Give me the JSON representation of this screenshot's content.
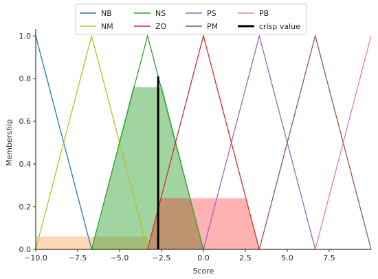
{
  "chart_data": {
    "type": "line",
    "title": "",
    "xlabel": "Score",
    "ylabel": "Membership",
    "xlim": [
      -10,
      10
    ],
    "ylim": [
      0,
      1.0
    ],
    "xticks": [
      -10.0,
      -7.5,
      -5.0,
      -2.5,
      0.0,
      2.5,
      5.0,
      7.5
    ],
    "xtick_labels": [
      "−10.0",
      "−7.5",
      "−5.0",
      "−2.5",
      "0.0",
      "2.5",
      "5.0",
      "7.5"
    ],
    "yticks": [
      0.0,
      0.2,
      0.4,
      0.6,
      0.8,
      1.0
    ],
    "ytick_labels": [
      "0.0",
      "0.2",
      "0.4",
      "0.6",
      "0.8",
      "1.0"
    ],
    "legend": {
      "placement": "top-center",
      "columns": 4
    },
    "series": [
      {
        "name": "NB",
        "color": "#1f77b4",
        "x": [
          -10,
          -10,
          -6.67
        ],
        "y": [
          1,
          1,
          0
        ]
      },
      {
        "name": "NM",
        "color": "#bcbd22",
        "x": [
          -10,
          -6.67,
          -3.33
        ],
        "y": [
          0,
          1,
          0
        ]
      },
      {
        "name": "NS",
        "color": "#2ca02c",
        "x": [
          -6.67,
          -3.33,
          0
        ],
        "y": [
          0,
          1,
          0
        ]
      },
      {
        "name": "ZO",
        "color": "#d62728",
        "x": [
          -3.33,
          0,
          3.33
        ],
        "y": [
          0,
          1,
          0
        ]
      },
      {
        "name": "PS",
        "color": "#9467bd",
        "x": [
          0,
          3.33,
          6.67
        ],
        "y": [
          0,
          1,
          0
        ]
      },
      {
        "name": "PM",
        "color": "#8c564b",
        "x": [
          3.33,
          6.67,
          10
        ],
        "y": [
          0,
          1,
          0
        ]
      },
      {
        "name": "PB",
        "color": "#e377c2",
        "x": [
          6.67,
          10,
          10
        ],
        "y": [
          0,
          1,
          1
        ]
      }
    ],
    "filled_regions": [
      {
        "series": "NM",
        "color": "#ff7f0e",
        "opacity": 0.3,
        "x": [
          -10,
          -10,
          -6.67,
          -3.33,
          -3.33
        ],
        "y": [
          0,
          0.06,
          0.06,
          0.06,
          0
        ]
      },
      {
        "series": "NS",
        "color": "#2ca02c",
        "opacity": 0.45,
        "x": [
          -6.67,
          -4.2,
          -3.33,
          -2.45,
          0
        ],
        "y": [
          0,
          0.76,
          0.76,
          0.76,
          0
        ]
      },
      {
        "series": "ZO",
        "color": "#ff0000",
        "opacity": 0.3,
        "x": [
          -3.33,
          -2.53,
          0,
          2.53,
          3.33
        ],
        "y": [
          0,
          0.24,
          0.24,
          0.24,
          0
        ]
      }
    ],
    "crisp_value": {
      "label": "crisp value",
      "color": "#000000",
      "x": -2.7,
      "y_top": 0.81
    }
  }
}
